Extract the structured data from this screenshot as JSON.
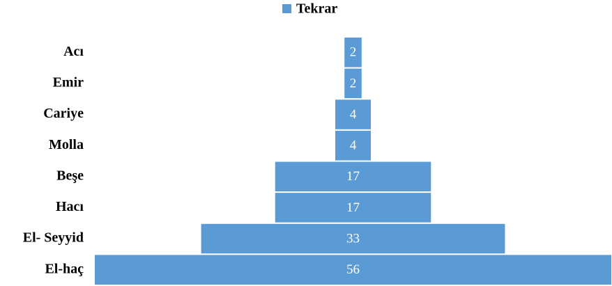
{
  "chart_data": {
    "type": "funnel",
    "legend": "top",
    "series": [
      {
        "name": "Tekrar",
        "color": "#5b9bd5",
        "values": [
          2,
          2,
          4,
          4,
          17,
          17,
          33,
          56
        ]
      }
    ],
    "categories": [
      "Acı",
      "Emir",
      "Cariye",
      "Molla",
      "Beşe",
      "Hacı",
      "El- Seyyid",
      "El-haç"
    ]
  }
}
